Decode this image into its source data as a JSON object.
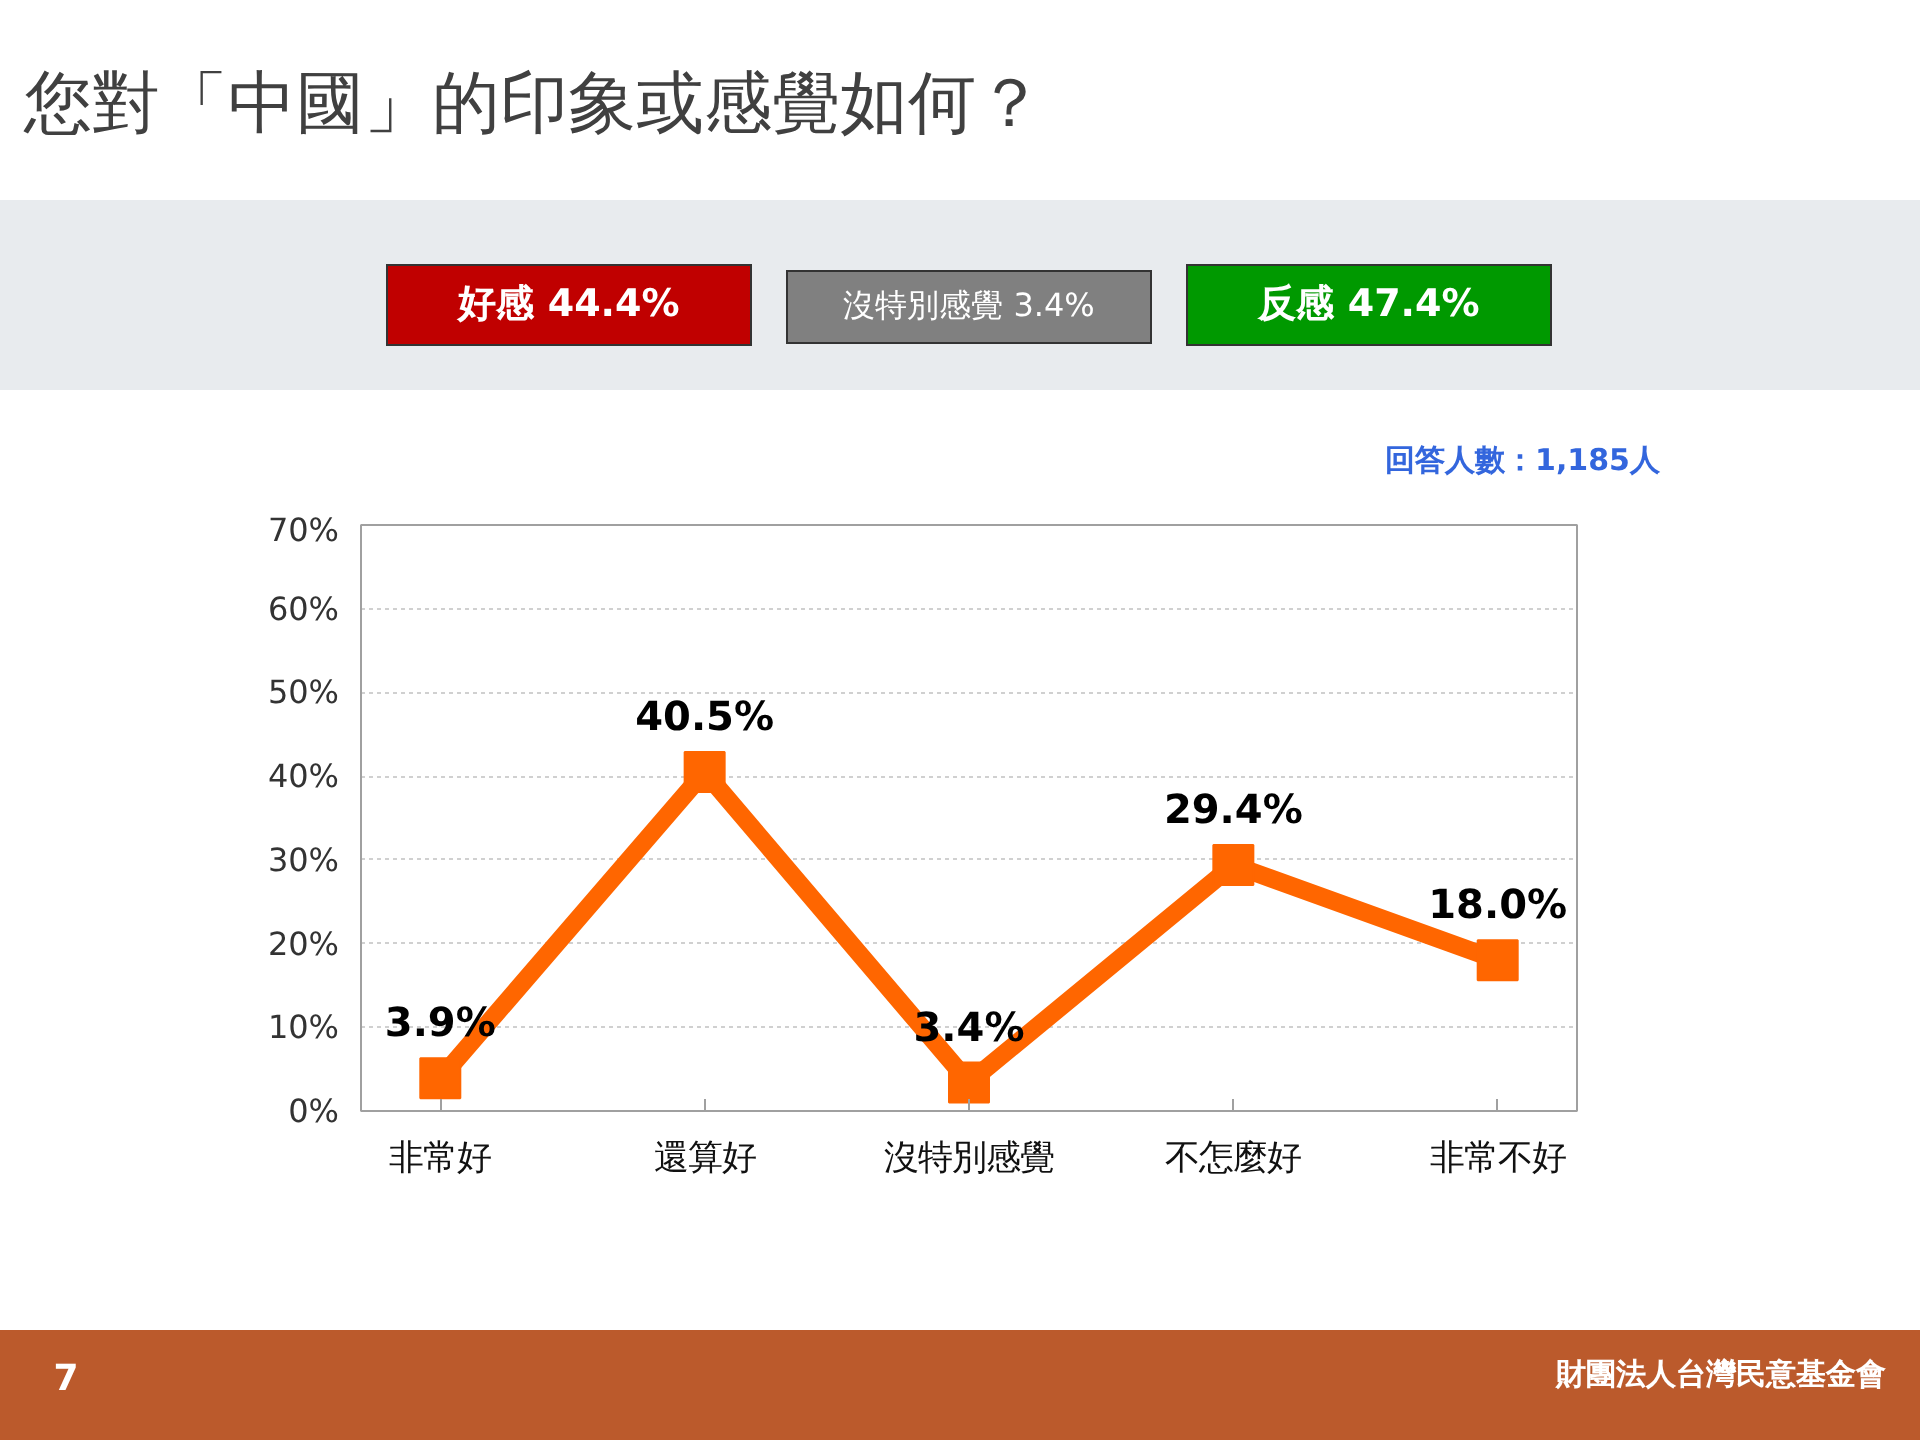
{
  "chart_data": {
    "type": "line",
    "title": "您對「中國」的印象或感覺如何？",
    "categories": [
      "非常好",
      "還算好",
      "沒特別感覺",
      "不怎麼好",
      "非常不好"
    ],
    "series": [
      {
        "color": "#ff6600",
        "values": [
          3.9,
          40.5,
          3.4,
          29.4,
          18.0
        ],
        "value_labels": [
          "3.9%",
          "40.5%",
          "3.4%",
          "29.4%",
          "18.0%"
        ]
      }
    ],
    "ylim": [
      0,
      70
    ],
    "yticks": [
      {
        "value": 0,
        "label": "0%"
      },
      {
        "value": 10,
        "label": "10%"
      },
      {
        "value": 20,
        "label": "20%"
      },
      {
        "value": 30,
        "label": "30%"
      },
      {
        "value": 40,
        "label": "40%"
      },
      {
        "value": 50,
        "label": "50%"
      },
      {
        "value": 60,
        "label": "60%"
      },
      {
        "value": 70,
        "label": "70%"
      }
    ],
    "grid": "y",
    "marker": "square",
    "line_style": "solid",
    "annotations": [
      "好感 44.4%",
      "沒特別感覺 3.4%",
      "反感 47.4%",
      "回答人數：1,185人",
      "7",
      "財團法人台灣民意基金會"
    ]
  }
}
